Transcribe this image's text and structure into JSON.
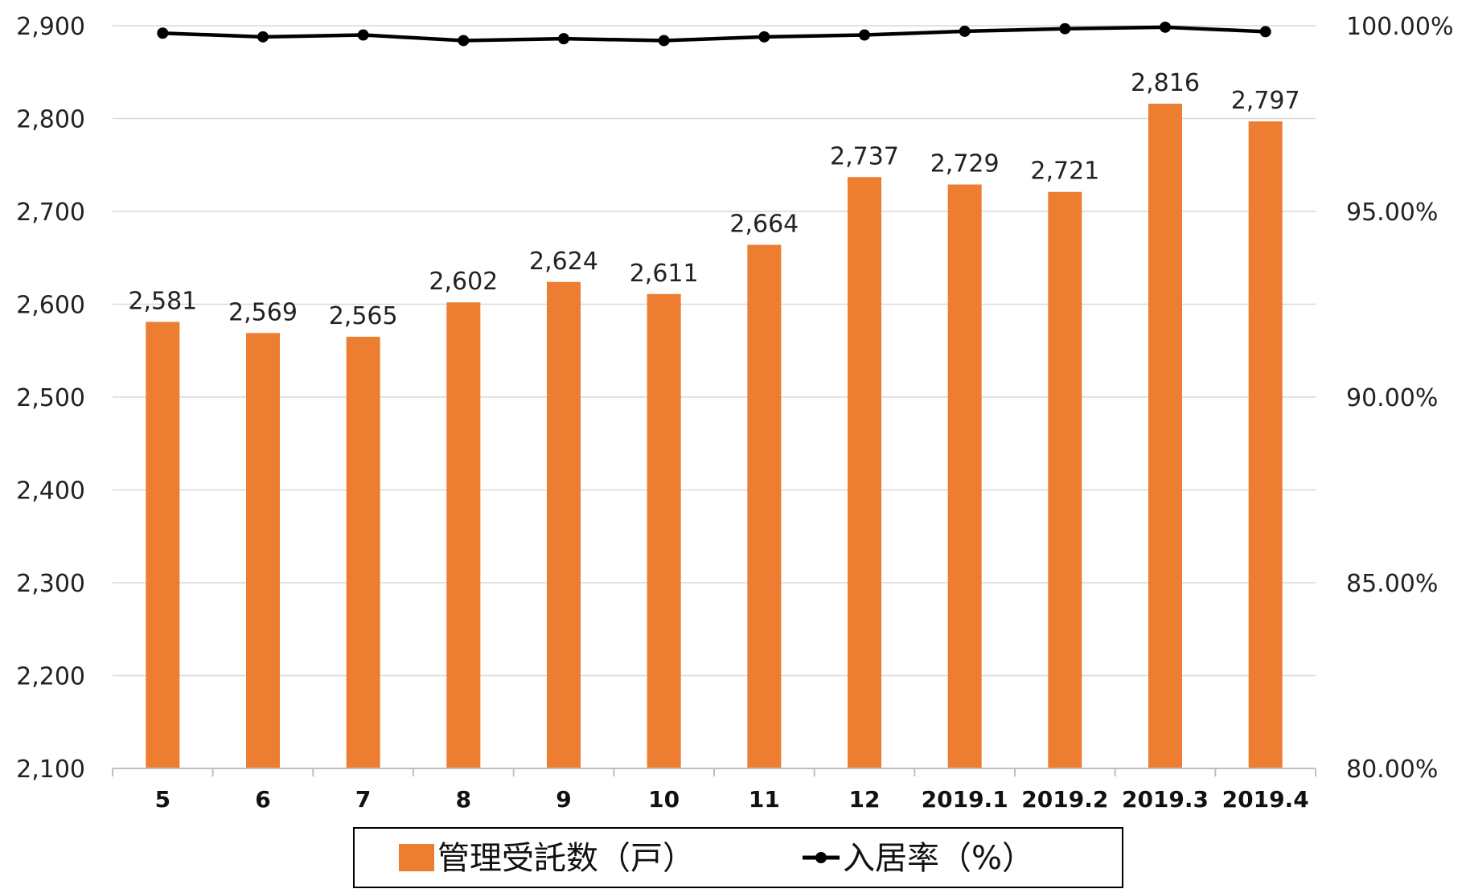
{
  "chart_data": {
    "type": "bar",
    "categories": [
      "5",
      "6",
      "7",
      "8",
      "9",
      "10",
      "11",
      "12",
      "2019.1",
      "2019.2",
      "2019.3",
      "2019.4"
    ],
    "series": [
      {
        "name": "管理受託数（戸）",
        "type": "bar",
        "axis": "left",
        "color": "#ED7D31",
        "values": [
          2581,
          2569,
          2565,
          2602,
          2624,
          2611,
          2664,
          2737,
          2729,
          2721,
          2816,
          2797
        ],
        "labels": [
          "2,581",
          "2,569",
          "2,565",
          "2,602",
          "2,624",
          "2,611",
          "2,664",
          "2,737",
          "2,729",
          "2,721",
          "2,816",
          "2,797"
        ]
      },
      {
        "name": "入居率（%）",
        "type": "line",
        "axis": "right",
        "color": "#000000",
        "values": [
          99.8,
          99.7,
          99.75,
          99.6,
          99.65,
          99.6,
          99.7,
          99.75,
          99.85,
          99.92,
          99.96,
          99.84
        ]
      }
    ],
    "y_left": {
      "range": [
        2100,
        2900
      ],
      "ticks": [
        2100,
        2200,
        2300,
        2400,
        2500,
        2600,
        2700,
        2800,
        2900
      ],
      "tick_labels": [
        "2,100",
        "2,200",
        "2,300",
        "2,400",
        "2,500",
        "2,600",
        "2,700",
        "2,800",
        "2,900"
      ]
    },
    "y_right": {
      "range": [
        80,
        100
      ],
      "ticks": [
        80,
        85,
        90,
        95,
        100
      ],
      "tick_labels": [
        "80.00%",
        "85.00%",
        "90.00%",
        "95.00%",
        "100.00%"
      ]
    },
    "grid": true,
    "legend": "bottom"
  }
}
